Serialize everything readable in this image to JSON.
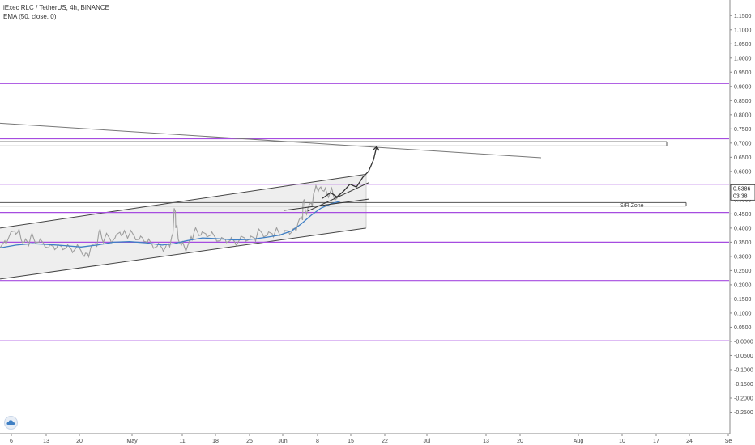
{
  "legend": {
    "symbol": "iExec RLC / TetherUS, 4h, BINANCE",
    "indicator": "EMA (50, close, 0)"
  },
  "colors": {
    "price": "#9e9e9e",
    "ema": "#3f7fc4",
    "horizontal_levels": "#a64ce0",
    "sr_zone": "#555555",
    "channel": "#444444",
    "trendline": "#777777",
    "projection": "#333333",
    "channel_fill": "#ebebeb"
  },
  "chart_data": {
    "type": "line",
    "series": [
      {
        "values": [
          [
            0,
            0.33
          ],
          [
            6,
            0.355
          ],
          [
            12,
            0.375
          ],
          [
            18,
            0.39
          ],
          [
            22,
            0.385
          ],
          [
            26,
            0.36
          ],
          [
            30,
            0.35
          ],
          [
            34,
            0.35
          ],
          [
            38,
            0.37
          ],
          [
            42,
            0.36
          ],
          [
            48,
            0.35
          ],
          [
            54,
            0.345
          ],
          [
            60,
            0.33
          ],
          [
            66,
            0.335
          ],
          [
            70,
            0.33
          ],
          [
            76,
            0.335
          ],
          [
            82,
            0.33
          ],
          [
            88,
            0.325
          ],
          [
            94,
            0.33
          ],
          [
            100,
            0.32
          ],
          [
            104,
            0.3
          ],
          [
            108,
            0.31
          ],
          [
            112,
            0.33
          ],
          [
            118,
            0.345
          ],
          [
            122,
            0.385
          ],
          [
            126,
            0.36
          ],
          [
            130,
            0.37
          ],
          [
            136,
            0.36
          ],
          [
            142,
            0.365
          ],
          [
            148,
            0.385
          ],
          [
            152,
            0.38
          ],
          [
            156,
            0.375
          ],
          [
            160,
            0.38
          ],
          [
            166,
            0.37
          ],
          [
            172,
            0.36
          ],
          [
            176,
            0.365
          ],
          [
            182,
            0.35
          ],
          [
            188,
            0.34
          ],
          [
            194,
            0.335
          ],
          [
            200,
            0.33
          ],
          [
            204,
            0.33
          ],
          [
            208,
            0.345
          ],
          [
            212,
            0.37
          ],
          [
            215,
            0.47
          ],
          [
            217,
            0.4
          ],
          [
            220,
            0.36
          ],
          [
            224,
            0.34
          ],
          [
            228,
            0.33
          ],
          [
            232,
            0.34
          ],
          [
            236,
            0.37
          ],
          [
            240,
            0.39
          ],
          [
            244,
            0.385
          ],
          [
            248,
            0.375
          ],
          [
            254,
            0.38
          ],
          [
            260,
            0.375
          ],
          [
            266,
            0.365
          ],
          [
            272,
            0.355
          ],
          [
            278,
            0.36
          ],
          [
            284,
            0.355
          ],
          [
            290,
            0.35
          ],
          [
            296,
            0.36
          ],
          [
            302,
            0.365
          ],
          [
            308,
            0.36
          ],
          [
            314,
            0.365
          ],
          [
            318,
            0.385
          ],
          [
            324,
            0.38
          ],
          [
            330,
            0.375
          ],
          [
            336,
            0.38
          ],
          [
            340,
            0.39
          ],
          [
            344,
            0.385
          ],
          [
            350,
            0.38
          ],
          [
            356,
            0.39
          ],
          [
            360,
            0.385
          ],
          [
            364,
            0.4
          ],
          [
            368,
            0.42
          ],
          [
            372,
            0.44
          ],
          [
            374,
            0.49
          ],
          [
            377,
            0.46
          ],
          [
            380,
            0.47
          ],
          [
            384,
            0.49
          ],
          [
            387,
            0.52
          ],
          [
            390,
            0.55
          ],
          [
            393,
            0.53
          ],
          [
            396,
            0.545
          ],
          [
            400,
            0.53
          ],
          [
            404,
            0.52
          ],
          [
            408,
            0.53
          ],
          [
            412,
            0.51
          ],
          [
            416,
            0.505
          ],
          [
            420,
            0.515
          ]
        ]
      },
      {
        "values": [
          [
            0,
            0.33
          ],
          [
            20,
            0.34
          ],
          [
            40,
            0.345
          ],
          [
            60,
            0.342
          ],
          [
            80,
            0.338
          ],
          [
            100,
            0.333
          ],
          [
            120,
            0.34
          ],
          [
            140,
            0.35
          ],
          [
            160,
            0.352
          ],
          [
            180,
            0.348
          ],
          [
            200,
            0.34
          ],
          [
            215,
            0.345
          ],
          [
            230,
            0.355
          ],
          [
            250,
            0.365
          ],
          [
            270,
            0.362
          ],
          [
            290,
            0.358
          ],
          [
            310,
            0.36
          ],
          [
            330,
            0.368
          ],
          [
            345,
            0.375
          ],
          [
            360,
            0.39
          ],
          [
            372,
            0.415
          ],
          [
            384,
            0.445
          ],
          [
            396,
            0.47
          ],
          [
            408,
            0.485
          ],
          [
            420,
            0.495
          ]
        ]
      }
    ],
    "x_ticks": [
      {
        "x": 14,
        "label": "6"
      },
      {
        "x": 57,
        "label": "13"
      },
      {
        "x": 98,
        "label": "20"
      },
      {
        "x": 163,
        "label": "May"
      },
      {
        "x": 225,
        "label": "11"
      },
      {
        "x": 266,
        "label": "18"
      },
      {
        "x": 308,
        "label": "25"
      },
      {
        "x": 349,
        "label": "Jun"
      },
      {
        "x": 392,
        "label": "8"
      },
      {
        "x": 433,
        "label": "15"
      },
      {
        "x": 475,
        "label": "22"
      },
      {
        "x": 527,
        "label": "Jul"
      },
      {
        "x": 600,
        "label": "13"
      },
      {
        "x": 642,
        "label": "20"
      },
      {
        "x": 714,
        "label": "Aug"
      },
      {
        "x": 768,
        "label": "10"
      },
      {
        "x": 810,
        "label": "17"
      },
      {
        "x": 851,
        "label": "24"
      },
      {
        "x": 899,
        "label": "Se"
      }
    ],
    "x_range": [
      0,
      900
    ],
    "y_ticks": [
      "1.1500",
      "1.1000",
      "1.0500",
      "1.0000",
      "0.9500",
      "0.9000",
      "0.8500",
      "0.8000",
      "0.7500",
      "0.7000",
      "0.6500",
      "0.6000",
      "0.5500",
      "0.5000",
      "0.4500",
      "0.4000",
      "0.3500",
      "0.3000",
      "0.2500",
      "0.2000",
      "0.1500",
      "0.1000",
      "0.0500",
      "-0.0000",
      "-0.0500",
      "-0.1000",
      "-0.1500",
      "-0.2000",
      "-0.2500"
    ],
    "ylim": [
      -0.28,
      1.165
    ],
    "horizontal_levels": [
      0.91,
      0.715,
      0.555,
      0.455,
      0.35,
      0.215,
      0.002
    ],
    "sr_zone": {
      "levels": [
        0.705,
        0.69,
        0.49,
        0.478
      ],
      "label": "S/R Zone",
      "label_x": 765,
      "label_y": 0.466
    },
    "channel": {
      "upper": [
        [
          0,
          0.4
        ],
        [
          452,
          0.59
        ]
      ],
      "lower": [
        [
          0,
          0.22
        ],
        [
          452,
          0.4
        ]
      ]
    },
    "trendline": [
      [
        0,
        0.77
      ],
      [
        668,
        0.648
      ]
    ],
    "support_lines": [
      [
        [
          350,
          0.462
        ],
        [
          455,
          0.502
        ]
      ],
      [
        [
          380,
          0.46
        ],
        [
          455,
          0.56
        ]
      ]
    ],
    "projection": [
      [
        398,
        0.505
      ],
      [
        408,
        0.525
      ],
      [
        416,
        0.51
      ],
      [
        424,
        0.53
      ],
      [
        432,
        0.555
      ],
      [
        440,
        0.545
      ],
      [
        448,
        0.58
      ],
      [
        455,
        0.6
      ],
      [
        461,
        0.64
      ],
      [
        465,
        0.688
      ]
    ],
    "current_price": {
      "value": 0.5386,
      "label": "0.5386",
      "countdown": "03:38"
    },
    "price_axis_stub": "0.5000"
  }
}
